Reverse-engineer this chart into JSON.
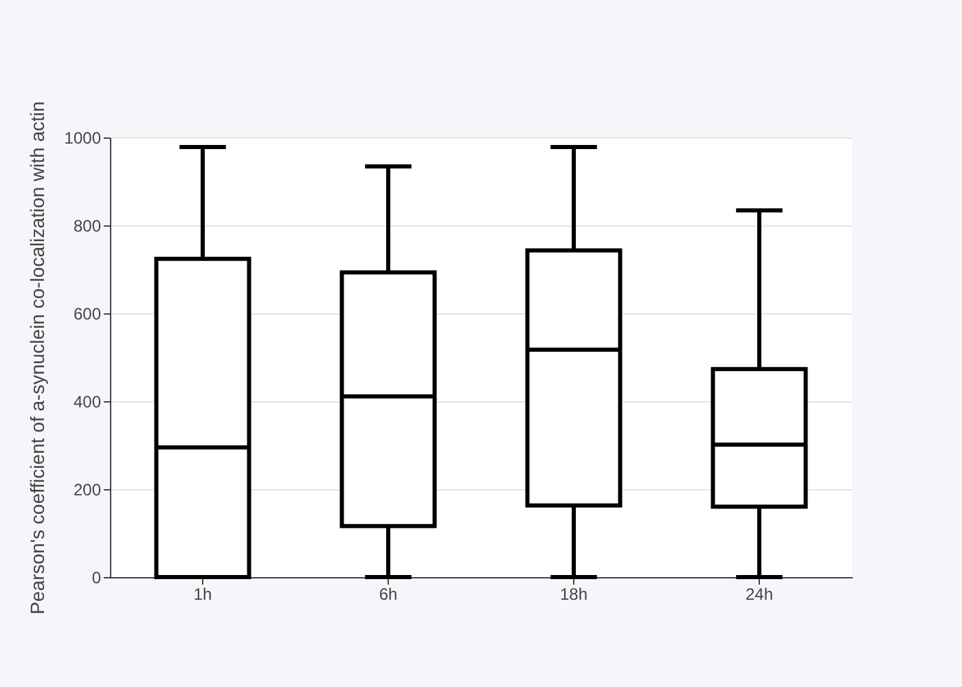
{
  "chart_data": {
    "type": "box",
    "ylabel": "Pearson's coefficient of a-synuclein co-localization with actin",
    "categories": [
      "1h",
      "6h",
      "18h",
      "24h"
    ],
    "color": "#000000",
    "boxes": [
      {
        "low": 0,
        "q1": 0,
        "median": 295,
        "q3": 724,
        "high": 978
      },
      {
        "low": 0,
        "q1": 116,
        "median": 411,
        "q3": 693,
        "high": 934
      },
      {
        "low": 0,
        "q1": 163,
        "median": 517,
        "q3": 743,
        "high": 978
      },
      {
        "low": 0,
        "q1": 160,
        "median": 301,
        "q3": 473,
        "high": 834
      }
    ],
    "ylim": [
      0,
      1000
    ],
    "yticks": [
      0,
      200,
      400,
      600,
      800,
      {
        "value": 1000,
        "label": "1000"
      }
    ],
    "grid": "y"
  }
}
